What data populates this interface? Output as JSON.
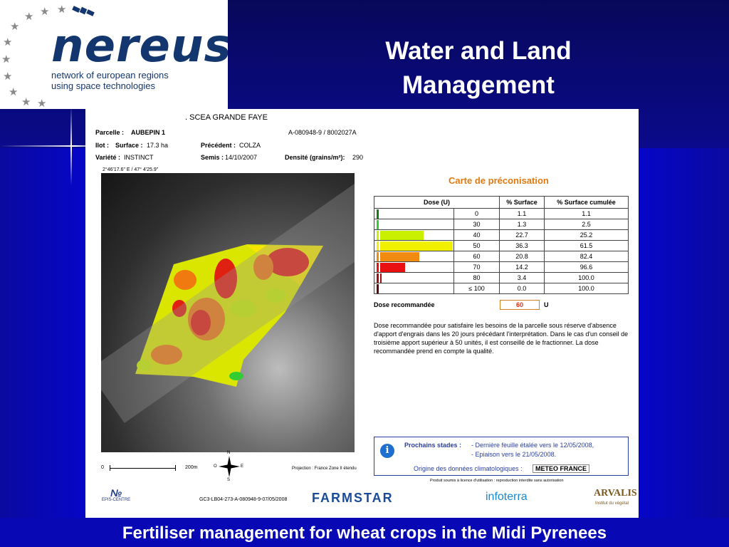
{
  "slide": {
    "title": "Water and Land Management",
    "caption": "Fertiliser management for wheat crops in the Midi Pyrenees"
  },
  "logo": {
    "name": "nereus",
    "tagline_line1": "network of european regions",
    "tagline_line2": "using space technologies",
    "icon": "satellite-icon"
  },
  "report": {
    "farm": ". SCEA GRANDE FAYE",
    "parcelle_label": "Parcelle :",
    "parcelle_value": "AUBEPIN 1",
    "reference": "A-080948-9 / 8002027A",
    "ilot_label": "Ilot :",
    "surface_label": "Surface :",
    "surface_value": "17.3 ha",
    "precedent_label": "Précédent :",
    "precedent_value": "COLZA",
    "variete_label": "Variété :",
    "variete_value": "INSTINCT",
    "semis_label": "Semis :",
    "semis_value": "14/10/2007",
    "densite_label": "Densité (grains/m²):",
    "densite_value": "290",
    "coordinates": "2°46'17.6\" E / 47° 4'25.9\"",
    "carte_title": "Carte de préconisation",
    "table_headers": [
      "Dose (U)",
      "% Surface",
      "% Surface cumulée"
    ],
    "table_rows": [
      {
        "dose": "0",
        "surface": "1.1",
        "cumul": "1.1",
        "bar_fraction": 0.05,
        "color": "#1a7a1a"
      },
      {
        "dose": "30",
        "surface": "1.3",
        "cumul": "2.5",
        "bar_fraction": 0.06,
        "color": "#33cc33"
      },
      {
        "dose": "40",
        "surface": "22.7",
        "cumul": "25.2",
        "bar_fraction": 0.63,
        "color": "#c8f000"
      },
      {
        "dose": "50",
        "surface": "36.3",
        "cumul": "61.5",
        "bar_fraction": 1.0,
        "color": "#f0f000"
      },
      {
        "dose": "60",
        "surface": "20.8",
        "cumul": "82.4",
        "bar_fraction": 0.57,
        "color": "#f08a10"
      },
      {
        "dose": "70",
        "surface": "14.2",
        "cumul": "96.6",
        "bar_fraction": 0.39,
        "color": "#e81010"
      },
      {
        "dose": "80",
        "surface": "3.4",
        "cumul": "100.0",
        "bar_fraction": 0.09,
        "color": "#a01010"
      },
      {
        "dose": "≤ 100",
        "surface": "0.0",
        "cumul": "100.0",
        "bar_fraction": 0.05,
        "color": "#5a0808"
      }
    ],
    "dose_reco_label": "Dose recommandée",
    "dose_reco_value": "60",
    "dose_reco_unit": "U",
    "paragraph": "Dose recommandée pour satisfaire les besoins de la parcelle sous réserve d'absence d'apport d'engrais dans les 20 jours précédant l'interprétation. Dans le cas d'un conseil de troisième apport supérieur à 50 unités, il est conseillé de le fractionner. La dose recommandée prend en compte la qualité.",
    "prochains_label": "Prochains stades :",
    "stade1": "- Dernière feuille étalée vers le 12/05/2008,",
    "stade2": "- Epiaison vers le 21/05/2008.",
    "origine_label": "Origine des données climatologiques :",
    "origine_value": "METEO FRANCE",
    "licence": "Produit soumis à licence d'utilisation : reproduction interdite sans autorisation",
    "scale_0": "0",
    "scale_200": "200m",
    "compass": {
      "n": "N",
      "s": "S",
      "e": "E",
      "o": "O"
    },
    "projection": "Projection : France Zone II étendu",
    "doc_ref": "GC3-LB04-273-A-080948-9-07/05/2008",
    "logo_epis": "EPIS-CENTRE",
    "logo_farmstar": "FARMSTAR",
    "logo_infoterra": "infoterra",
    "logo_arvalis": "ARVALIS",
    "logo_arvalis_sub": "Institut du végétal"
  }
}
